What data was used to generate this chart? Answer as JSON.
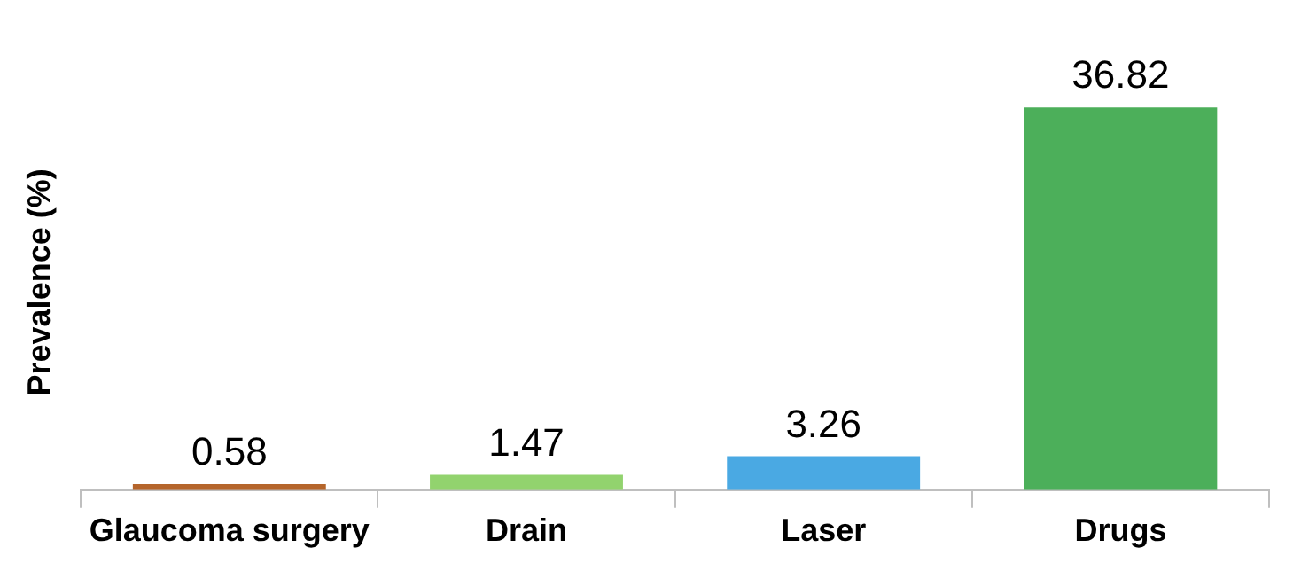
{
  "chart_data": {
    "type": "bar",
    "ylabel": "Prevalence (%)",
    "categories": [
      "Glaucoma surgery",
      "Drain",
      "Laser",
      "Drugs"
    ],
    "values": [
      0.58,
      1.47,
      3.26,
      36.82
    ],
    "colors": [
      "#b5652b",
      "#92d36e",
      "#4aa9e3",
      "#4caf5a"
    ],
    "data_labels": true,
    "grid": false,
    "legend": false
  }
}
